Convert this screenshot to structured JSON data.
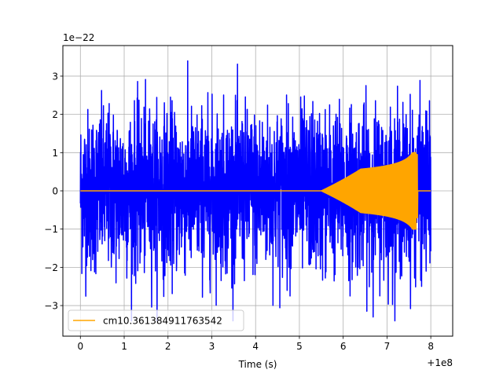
{
  "chart_data": {
    "type": "line",
    "title": "",
    "xlabel": "Time (s)",
    "ylabel": "",
    "x_offset_label": "+1e8",
    "y_scale_label": "1e−22",
    "xlim": [
      -0.4,
      8.5
    ],
    "ylim": [
      -3.8,
      3.8
    ],
    "xticks": [
      0,
      1,
      2,
      3,
      4,
      5,
      6,
      7,
      8
    ],
    "yticks": [
      -3,
      -2,
      -1,
      0,
      1,
      2,
      3
    ],
    "xtick_labels": [
      "0",
      "1",
      "2",
      "3",
      "4",
      "5",
      "6",
      "7",
      "8"
    ],
    "ytick_labels": [
      "−3",
      "−2",
      "−1",
      "0",
      "1",
      "2",
      "3"
    ],
    "grid": true,
    "legend_position": "lower-left",
    "series": [
      {
        "color": "#0000ff",
        "kind": "noise",
        "x_range": [
          0,
          8.0
        ],
        "approx_envelope": [
          -3.4,
          3.4
        ]
      },
      {
        "name": "cm10.361384911763542",
        "color": "#ffa500",
        "kind": "chirp",
        "x_range": [
          0,
          8.0
        ],
        "chirp_start": 5.5,
        "merger_time": 7.7,
        "peak_amplitude": 0.95,
        "min_amplitude": -0.7
      }
    ]
  }
}
